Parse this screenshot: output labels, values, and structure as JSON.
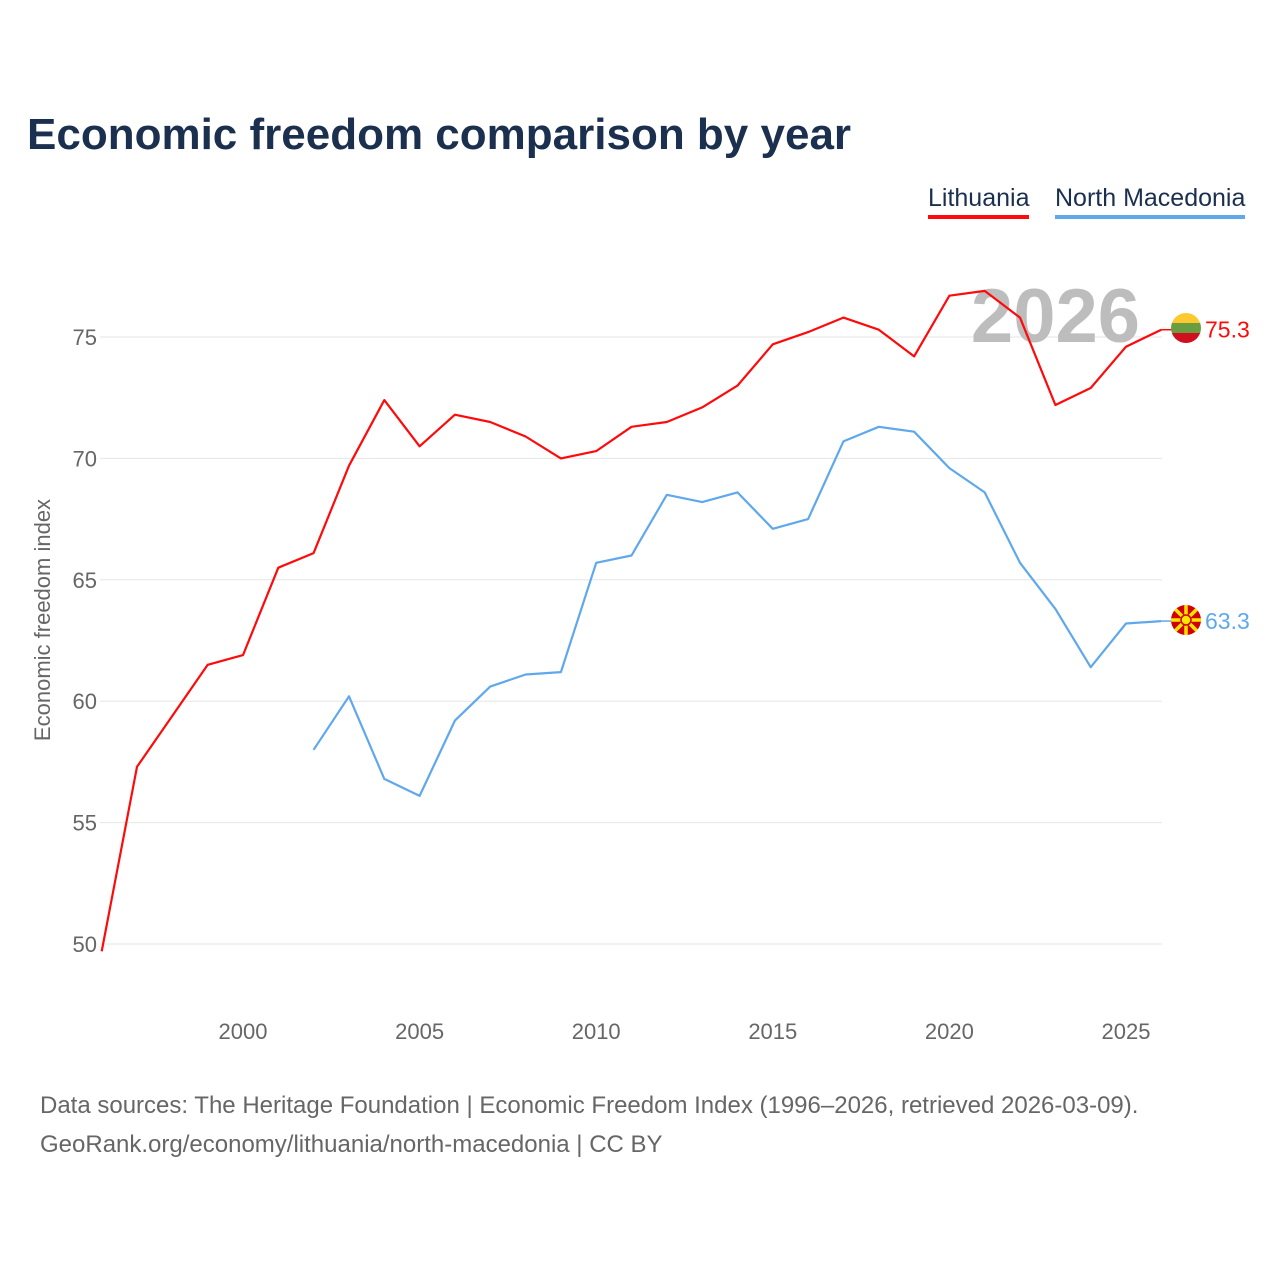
{
  "chart_data": {
    "type": "line",
    "title": "Economic freedom comparison by year",
    "xlabel": "",
    "ylabel": "Economic freedom index",
    "xlim": [
      1996,
      2026
    ],
    "ylim": [
      48,
      79
    ],
    "xticks": [
      2000,
      2005,
      2010,
      2015,
      2020,
      2025
    ],
    "yticks": [
      50,
      55,
      60,
      65,
      70,
      75
    ],
    "grid": true,
    "legend_position": "top-right",
    "watermark_year": "2026",
    "series": [
      {
        "name": "Lithuania",
        "color": "#ff0a0a",
        "end_label": "75.3",
        "x": [
          1996,
          1997,
          1998,
          1999,
          2000,
          2001,
          2002,
          2003,
          2004,
          2005,
          2006,
          2007,
          2008,
          2009,
          2010,
          2011,
          2012,
          2013,
          2014,
          2015,
          2016,
          2017,
          2018,
          2019,
          2020,
          2021,
          2022,
          2023,
          2024,
          2025,
          2026
        ],
        "values": [
          49.7,
          57.3,
          59.4,
          61.5,
          61.9,
          65.5,
          66.1,
          69.7,
          72.4,
          70.5,
          71.8,
          71.5,
          70.9,
          70.0,
          70.3,
          71.3,
          71.5,
          72.1,
          73.0,
          74.7,
          75.2,
          75.8,
          75.3,
          74.2,
          76.7,
          76.9,
          75.8,
          72.2,
          72.9,
          74.6,
          75.3
        ]
      },
      {
        "name": "North Macedonia",
        "color": "#5fa8ec",
        "end_label": "63.3",
        "x": [
          2002,
          2003,
          2004,
          2005,
          2006,
          2007,
          2008,
          2009,
          2010,
          2011,
          2012,
          2013,
          2014,
          2015,
          2016,
          2017,
          2018,
          2019,
          2020,
          2021,
          2022,
          2023,
          2024,
          2025,
          2026
        ],
        "values": [
          58.0,
          60.2,
          56.8,
          56.1,
          59.2,
          60.6,
          61.1,
          61.2,
          65.7,
          66.0,
          68.5,
          68.2,
          68.6,
          67.1,
          67.5,
          70.7,
          71.3,
          71.1,
          69.6,
          68.6,
          65.7,
          63.8,
          61.4,
          63.2,
          63.3
        ]
      }
    ]
  },
  "source": {
    "line1": "Data sources: The Heritage Foundation | Economic Freedom Index (1996–2026, retrieved 2026-03-09).",
    "line2": "GeoRank.org/economy/lithuania/north-macedonia | CC BY"
  }
}
